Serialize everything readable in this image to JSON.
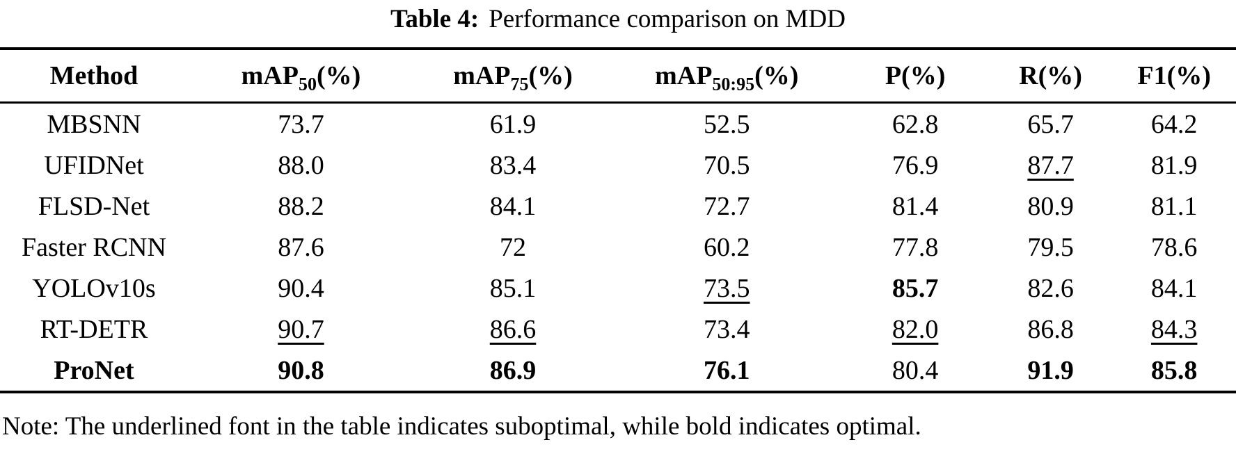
{
  "title": {
    "label": "Table 4:",
    "text": "Performance comparison on MDD"
  },
  "table": {
    "columns": [
      {
        "base": "Method",
        "sub": "",
        "suffix": ""
      },
      {
        "base": "mAP",
        "sub": "50",
        "suffix": "(%)"
      },
      {
        "base": "mAP",
        "sub": "75",
        "suffix": "(%)"
      },
      {
        "base": "mAP",
        "sub": "50:95",
        "suffix": "(%)"
      },
      {
        "base": "P",
        "sub": "",
        "suffix": "(%)"
      },
      {
        "base": "R",
        "sub": "",
        "suffix": "(%)"
      },
      {
        "base": "F1",
        "sub": "",
        "suffix": "(%)"
      }
    ],
    "rows": [
      {
        "cells": [
          {
            "text": "MBSNN",
            "style": "normal"
          },
          {
            "text": "73.7",
            "style": "normal"
          },
          {
            "text": "61.9",
            "style": "normal"
          },
          {
            "text": "52.5",
            "style": "normal"
          },
          {
            "text": "62.8",
            "style": "normal"
          },
          {
            "text": "65.7",
            "style": "normal"
          },
          {
            "text": "64.2",
            "style": "normal"
          }
        ]
      },
      {
        "cells": [
          {
            "text": "UFIDNet",
            "style": "normal"
          },
          {
            "text": "88.0",
            "style": "normal"
          },
          {
            "text": "83.4",
            "style": "normal"
          },
          {
            "text": "70.5",
            "style": "normal"
          },
          {
            "text": "76.9",
            "style": "normal"
          },
          {
            "text": "87.7",
            "style": "underline"
          },
          {
            "text": "81.9",
            "style": "normal"
          }
        ]
      },
      {
        "cells": [
          {
            "text": "FLSD-Net",
            "style": "normal"
          },
          {
            "text": "88.2",
            "style": "normal"
          },
          {
            "text": "84.1",
            "style": "normal"
          },
          {
            "text": "72.7",
            "style": "normal"
          },
          {
            "text": "81.4",
            "style": "normal"
          },
          {
            "text": "80.9",
            "style": "normal"
          },
          {
            "text": "81.1",
            "style": "normal"
          }
        ]
      },
      {
        "cells": [
          {
            "text": "Faster RCNN",
            "style": "normal"
          },
          {
            "text": "87.6",
            "style": "normal"
          },
          {
            "text": "72",
            "style": "normal"
          },
          {
            "text": "60.2",
            "style": "normal"
          },
          {
            "text": "77.8",
            "style": "normal"
          },
          {
            "text": "79.5",
            "style": "normal"
          },
          {
            "text": "78.6",
            "style": "normal"
          }
        ]
      },
      {
        "cells": [
          {
            "text": "YOLOv10s",
            "style": "normal"
          },
          {
            "text": "90.4",
            "style": "normal"
          },
          {
            "text": "85.1",
            "style": "normal"
          },
          {
            "text": "73.5",
            "style": "underline"
          },
          {
            "text": "85.7",
            "style": "bold"
          },
          {
            "text": "82.6",
            "style": "normal"
          },
          {
            "text": "84.1",
            "style": "normal"
          }
        ]
      },
      {
        "cells": [
          {
            "text": "RT-DETR",
            "style": "normal"
          },
          {
            "text": "90.7",
            "style": "underline"
          },
          {
            "text": "86.6",
            "style": "underline"
          },
          {
            "text": "73.4",
            "style": "normal"
          },
          {
            "text": "82.0",
            "style": "underline"
          },
          {
            "text": "86.8",
            "style": "normal"
          },
          {
            "text": "84.3",
            "style": "underline"
          }
        ]
      },
      {
        "cells": [
          {
            "text": "ProNet",
            "style": "bold"
          },
          {
            "text": "90.8",
            "style": "bold"
          },
          {
            "text": "86.9",
            "style": "bold"
          },
          {
            "text": "76.1",
            "style": "bold"
          },
          {
            "text": "80.4",
            "style": "normal"
          },
          {
            "text": "91.9",
            "style": "bold"
          },
          {
            "text": "85.8",
            "style": "bold"
          }
        ]
      }
    ]
  },
  "note": "Note: The underlined font in the table indicates suboptimal, while bold indicates optimal."
}
